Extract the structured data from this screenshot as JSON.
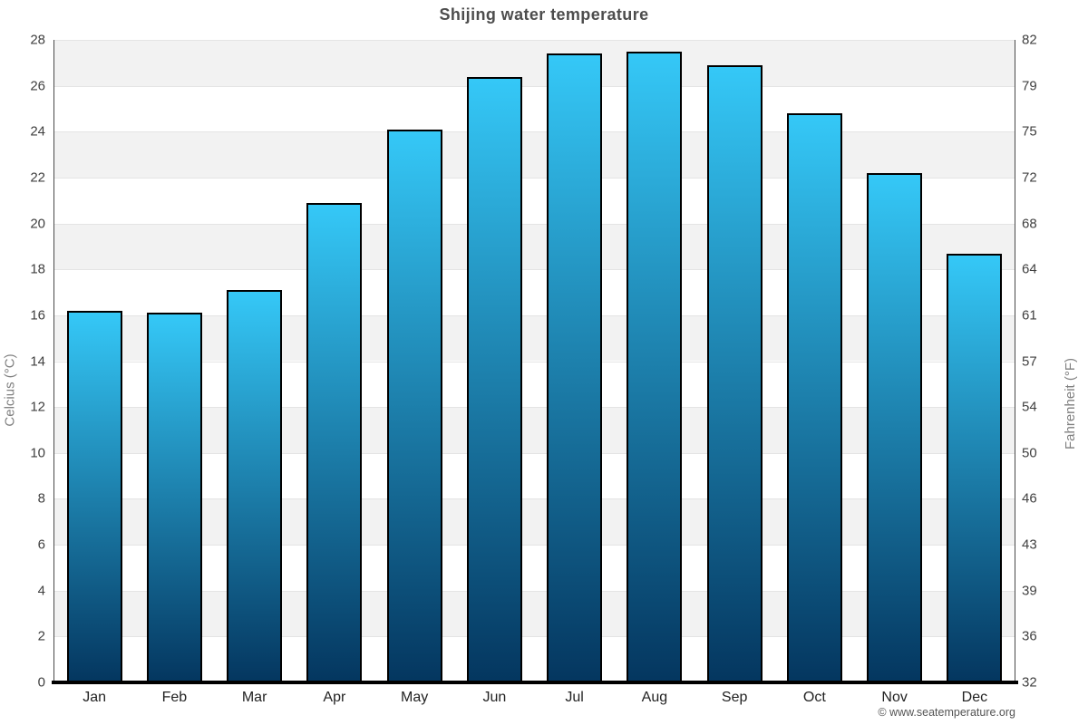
{
  "page": {
    "footer": "© www.seatemperature.org"
  },
  "chart_data": {
    "type": "bar",
    "title": "Shijing water temperature",
    "categories": [
      "Jan",
      "Feb",
      "Mar",
      "Apr",
      "May",
      "Jun",
      "Jul",
      "Aug",
      "Sep",
      "Oct",
      "Nov",
      "Dec"
    ],
    "values": [
      16.2,
      16.1,
      17.1,
      20.9,
      24.1,
      26.4,
      27.4,
      27.5,
      26.9,
      24.8,
      22.2,
      18.7
    ],
    "unit": "°C",
    "y_axis": {
      "left": {
        "label": "Celcius (°C)",
        "ticks": [
          0,
          2,
          4,
          6,
          8,
          10,
          12,
          14,
          16,
          18,
          20,
          22,
          24,
          26,
          28
        ],
        "range": [
          0,
          28
        ]
      },
      "right": {
        "label": "Fahrenheit (°F)",
        "tick_labels": [
          "32",
          "36",
          "39",
          "43",
          "46",
          "50",
          "54",
          "57",
          "61",
          "64",
          "68",
          "72",
          "75",
          "79",
          "82"
        ]
      }
    },
    "legend": "none",
    "grid": "alternating horizontal bands, light gridlines every 2°C",
    "colors": {
      "bar_top": "#35c8f7",
      "bar_bottom": "#04365f",
      "bar_border": "#000000",
      "band": "#f2f2f2",
      "title_text": "#4d4d4d"
    }
  }
}
